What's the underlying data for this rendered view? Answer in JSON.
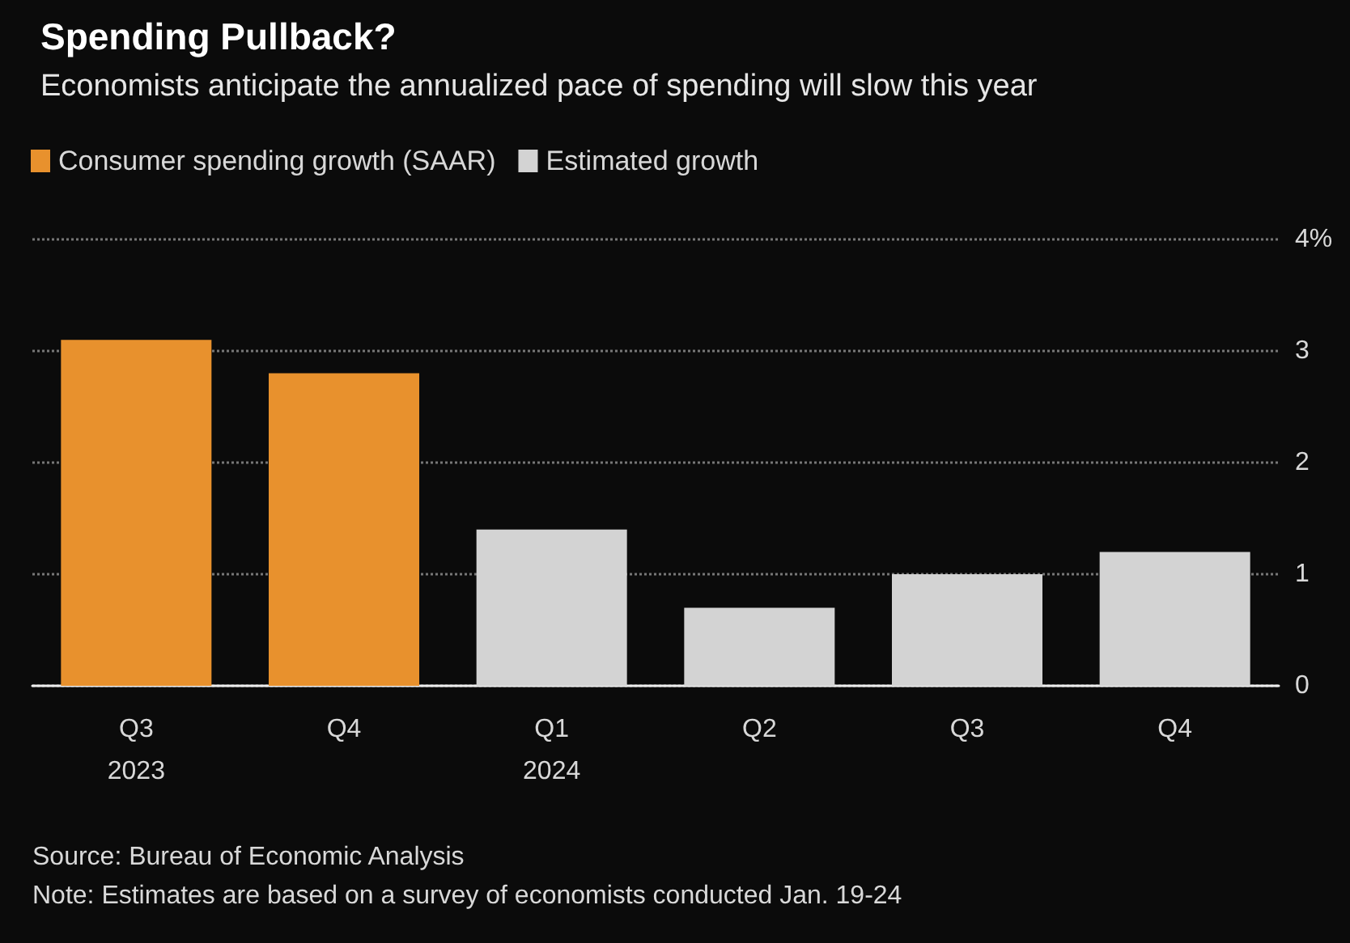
{
  "chart_data": {
    "type": "bar",
    "title": "Spending Pullback?",
    "subtitle": "Economists anticipate the annualized pace of spending will slow this year",
    "categories": [
      "Q3\n2023",
      "Q4",
      "Q1\n2024",
      "Q2",
      "Q3",
      "Q4"
    ],
    "series": [
      {
        "name": "Consumer spending growth (SAAR)",
        "color": "#e8912d",
        "values": [
          3.1,
          2.8,
          null,
          null,
          null,
          null
        ]
      },
      {
        "name": "Estimated growth",
        "color": "#d3d3d3",
        "values": [
          null,
          null,
          1.4,
          0.7,
          1.0,
          1.2
        ]
      }
    ],
    "ylim": [
      0,
      4
    ],
    "yticks": [
      0,
      1,
      2,
      3,
      {
        "value": 4,
        "label": "4%"
      }
    ],
    "grid": "y",
    "legend": "top left",
    "annotations": [
      "Source: Bureau of Economic Analysis",
      "Note: Estimates are based on a survey of economists conducted Jan. 19-24"
    ]
  }
}
